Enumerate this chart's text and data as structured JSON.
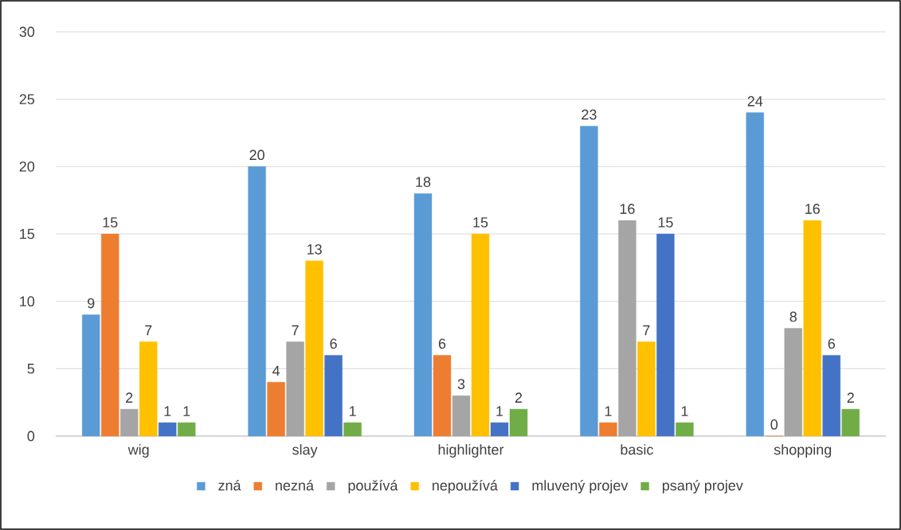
{
  "chart_data": {
    "type": "bar",
    "categories": [
      "wig",
      "slay",
      "highlighter",
      "basic",
      "shopping"
    ],
    "series": [
      {
        "name": "zná",
        "color": "#5b9bd5",
        "values": [
          9,
          20,
          18,
          23,
          24
        ]
      },
      {
        "name": "nezná",
        "color": "#ed7d31",
        "values": [
          15,
          4,
          6,
          1,
          0
        ]
      },
      {
        "name": "používá",
        "color": "#a5a5a5",
        "values": [
          2,
          7,
          3,
          16,
          8
        ]
      },
      {
        "name": "nepoužívá",
        "color": "#ffc000",
        "values": [
          7,
          13,
          15,
          7,
          16
        ]
      },
      {
        "name": "mluvený projev",
        "color": "#4472c4",
        "values": [
          1,
          6,
          1,
          15,
          6
        ]
      },
      {
        "name": "psaný projev",
        "color": "#70ad47",
        "values": [
          1,
          1,
          2,
          1,
          2
        ]
      }
    ],
    "ylim": [
      0,
      30
    ],
    "yticks": [
      0,
      5,
      10,
      15,
      20,
      25,
      30
    ],
    "grid": "y",
    "legend": "bottom",
    "data_labels": true
  }
}
